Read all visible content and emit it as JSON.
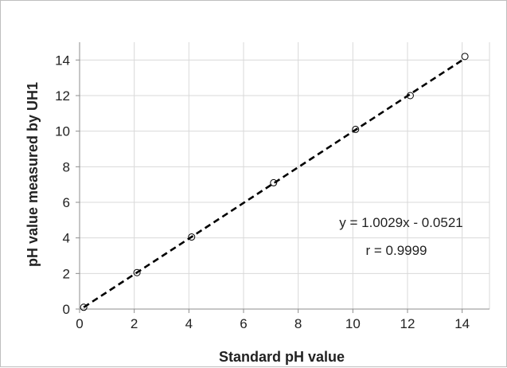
{
  "chart_data": {
    "type": "scatter",
    "title": "",
    "xlabel": "Standard pH value",
    "ylabel": "pH value measured by UH1",
    "xlim": [
      0,
      15
    ],
    "ylim": [
      0,
      15
    ],
    "x_ticks": [
      0,
      2,
      4,
      6,
      8,
      10,
      12,
      14
    ],
    "y_ticks": [
      0,
      2,
      4,
      6,
      8,
      10,
      12,
      14
    ],
    "grid": true,
    "legend": "none",
    "points": {
      "x": [
        0.15,
        2.1,
        4.1,
        7.1,
        10.1,
        12.1,
        14.1
      ],
      "y": [
        0.1,
        2.05,
        4.05,
        7.1,
        10.1,
        12.0,
        14.2
      ]
    },
    "trendline": {
      "style": "dashed",
      "slope": 1.0029,
      "intercept": -0.0521,
      "x_range": [
        0.15,
        14.1
      ]
    },
    "annotations": {
      "equation": "y = 1.0029x - 0.0521",
      "r_value": "r = 0.9999"
    },
    "colors": {
      "grid": "#d9d9d9",
      "axis": "#8c8c8c",
      "marker": "#000000",
      "trendline": "#000000"
    }
  }
}
